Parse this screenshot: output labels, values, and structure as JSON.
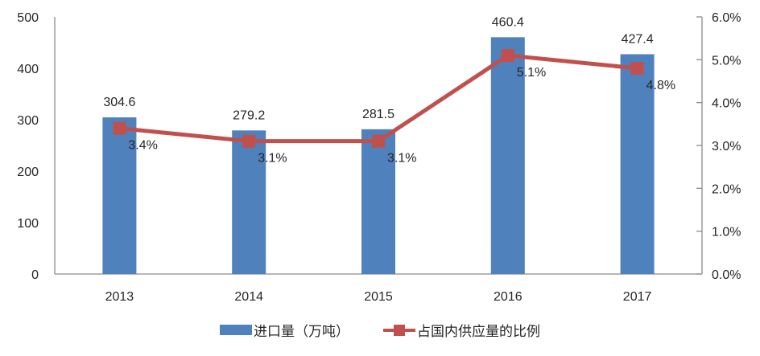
{
  "chart_data": {
    "type": "bar-line-combo",
    "title": "",
    "categories": [
      "2013",
      "2014",
      "2015",
      "2016",
      "2017"
    ],
    "series": [
      {
        "name": "进口量（万吨）",
        "type": "bar",
        "axis": "left",
        "values": [
          304.6,
          279.2,
          281.5,
          460.4,
          427.4
        ],
        "labels": [
          "304.6",
          "279.2",
          "281.5",
          "460.4",
          "427.4"
        ],
        "color": "#4f81bd"
      },
      {
        "name": "占国内供应量的比例",
        "type": "line",
        "axis": "right",
        "values": [
          3.4,
          3.1,
          3.1,
          5.1,
          4.8
        ],
        "labels": [
          "3.4%",
          "3.1%",
          "3.1%",
          "5.1%",
          "4.8%"
        ],
        "color": "#c0504d"
      }
    ],
    "left_axis": {
      "min": 0,
      "max": 500,
      "tick_labels": [
        "0",
        "100",
        "200",
        "300",
        "400",
        "500"
      ]
    },
    "right_axis": {
      "min": 0,
      "max": 6,
      "tick_labels": [
        "0.0%",
        "1.0%",
        "2.0%",
        "3.0%",
        "4.0%",
        "5.0%",
        "6.0%"
      ]
    },
    "grid": false,
    "legend_position": "bottom",
    "axis_color": "#8c8c8c",
    "text_color": "#262626",
    "bar_color": "#4f81bd",
    "line_color": "#c0504d"
  }
}
